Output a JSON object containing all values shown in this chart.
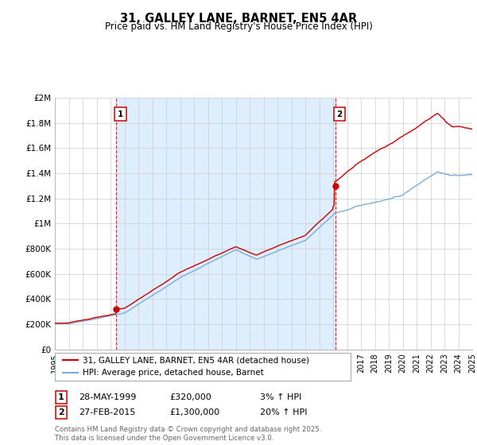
{
  "title": "31, GALLEY LANE, BARNET, EN5 4AR",
  "subtitle": "Price paid vs. HM Land Registry's House Price Index (HPI)",
  "ytick_values": [
    0,
    200000,
    400000,
    600000,
    800000,
    1000000,
    1200000,
    1400000,
    1600000,
    1800000,
    2000000
  ],
  "ylim": [
    0,
    2000000
  ],
  "xmin_year": 1995,
  "xmax_year": 2025,
  "xtick_years": [
    1995,
    1996,
    1997,
    1998,
    1999,
    2000,
    2001,
    2002,
    2003,
    2004,
    2005,
    2006,
    2007,
    2008,
    2009,
    2010,
    2011,
    2012,
    2013,
    2014,
    2015,
    2016,
    2017,
    2018,
    2019,
    2020,
    2021,
    2022,
    2023,
    2024,
    2025
  ],
  "red_color": "#cc0000",
  "blue_color": "#7aaddc",
  "shade_color": "#ddeeff",
  "marker1_x": 1999.42,
  "marker1_y": 320000,
  "marker2_x": 2015.15,
  "marker2_y": 1300000,
  "vline1_x": 1999.42,
  "vline2_x": 2015.15,
  "legend_line1": "31, GALLEY LANE, BARNET, EN5 4AR (detached house)",
  "legend_line2": "HPI: Average price, detached house, Barnet",
  "ann1_date": "28-MAY-1999",
  "ann1_price": "£320,000",
  "ann1_hpi": "3% ↑ HPI",
  "ann2_date": "27-FEB-2015",
  "ann2_price": "£1,300,000",
  "ann2_hpi": "20% ↑ HPI",
  "footer": "Contains HM Land Registry data © Crown copyright and database right 2025.\nThis data is licensed under the Open Government Licence v3.0.",
  "background_color": "#ffffff",
  "grid_color": "#cccccc"
}
